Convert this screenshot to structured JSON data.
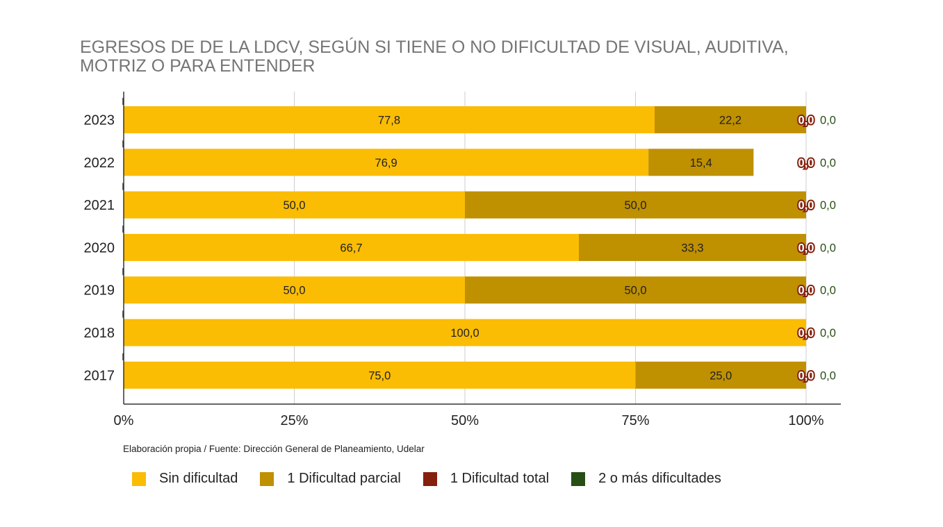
{
  "chart_data": {
    "type": "bar",
    "orientation": "horizontal",
    "stacked": "percent",
    "title": "EGRESOS DE DE LA LDCV, SEGÚN SI TIENE O NO DIFICULTAD DE VISUAL, AUDITIVA, MOTRIZ O PARA ENTENDER",
    "categories": [
      "2023",
      "2022",
      "2021",
      "2020",
      "2019",
      "2018",
      "2017"
    ],
    "series": [
      {
        "name": "Sin dificultad",
        "color": "#fbbc04",
        "values": [
          77.8,
          76.9,
          50.0,
          66.7,
          50.0,
          100.0,
          75.0
        ],
        "labels": [
          "77,8",
          "76,9",
          "50,0",
          "66,7",
          "50,0",
          "100,0",
          "75,0"
        ]
      },
      {
        "name": "1 Dificultad parcial",
        "color": "#bf9000",
        "values": [
          22.2,
          15.4,
          50.0,
          33.3,
          50.0,
          0.0,
          25.0
        ],
        "labels": [
          "22,2",
          "15,4",
          "50,0",
          "33,3",
          "50,0",
          "",
          "25,0"
        ]
      },
      {
        "name": "1 Dificultad total",
        "color": "#85200c",
        "values": [
          0.0,
          0.0,
          0.0,
          0.0,
          0.0,
          0.0,
          0.0
        ],
        "labels": [
          "0,0",
          "0,0",
          "0,0",
          "0,0",
          "0,0",
          "0,0",
          "0,0"
        ]
      },
      {
        "name": "2 o más dificultades",
        "color": "#274e13",
        "values": [
          0.0,
          0.0,
          0.0,
          0.0,
          0.0,
          0.0,
          0.0
        ],
        "labels": [
          "0,0",
          "0,0",
          "0,0",
          "0,0",
          "0,0",
          "0,0",
          "0,0"
        ]
      }
    ],
    "xlim": [
      0,
      100
    ],
    "xticks": [
      "0%",
      "25%",
      "50%",
      "75%",
      "100%"
    ],
    "xlabel": "",
    "ylabel": "",
    "grid": true,
    "legend_position": "bottom"
  },
  "source_note": "Elaboración propia / Fuente: Dirección General de Planeamiento, Udelar"
}
